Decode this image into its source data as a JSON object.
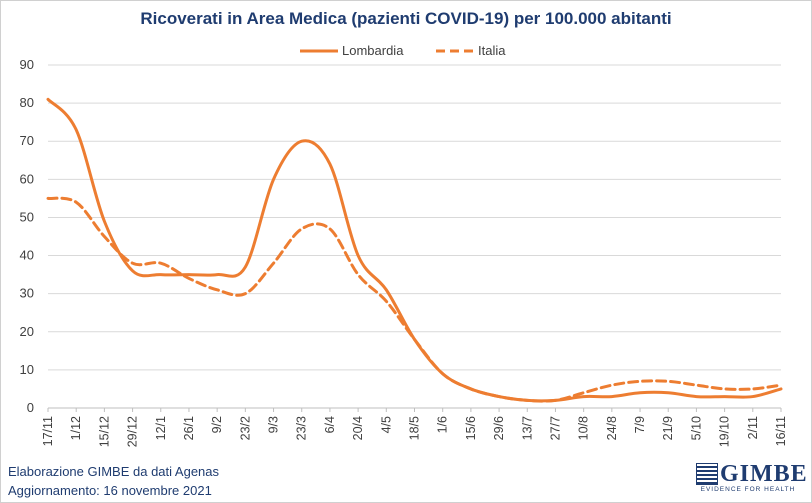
{
  "chart_data": {
    "type": "line",
    "title": "Ricoverati in Area Medica (pazienti COVID-19) per 100.000 abitanti",
    "ylim": [
      0,
      90
    ],
    "yticks": [
      0,
      10,
      20,
      30,
      40,
      50,
      60,
      70,
      80,
      90
    ],
    "x": [
      "17/11",
      "1/12",
      "15/12",
      "29/12",
      "12/1",
      "26/1",
      "9/2",
      "23/2",
      "9/3",
      "23/3",
      "6/4",
      "20/4",
      "4/5",
      "18/5",
      "1/6",
      "15/6",
      "29/6",
      "13/7",
      "27/7",
      "10/8",
      "24/8",
      "7/9",
      "21/9",
      "5/10",
      "19/10",
      "2/11",
      "16/11"
    ],
    "grid": true,
    "legend_position": "top",
    "series": [
      {
        "name": "Lombardia",
        "color": "#ed7d31",
        "style": "solid",
        "values": [
          81,
          73,
          49,
          36,
          35,
          35,
          35,
          37,
          60,
          70,
          64,
          40,
          31,
          18,
          9,
          5,
          3,
          2,
          2,
          3,
          3,
          4,
          4,
          3,
          3,
          3,
          5
        ]
      },
      {
        "name": "Italia",
        "color": "#ed7d31",
        "style": "dashed",
        "values": [
          55,
          54,
          45,
          38,
          38,
          34,
          31,
          30,
          38,
          47,
          47,
          35,
          28,
          18,
          9,
          5,
          3,
          2,
          2,
          4,
          6,
          7,
          7,
          6,
          5,
          5,
          6
        ]
      }
    ]
  },
  "footer": {
    "line1": "Elaborazione GIMBE da dati Agenas",
    "line2": "Aggiornamento: 16 novembre 2021"
  },
  "logo": {
    "word": "GIMBE",
    "tagline": "EVIDENCE FOR HEALTH"
  },
  "colors": {
    "title": "#1f3c70",
    "series": "#ed7d31",
    "grid": "#d9d9d9"
  }
}
